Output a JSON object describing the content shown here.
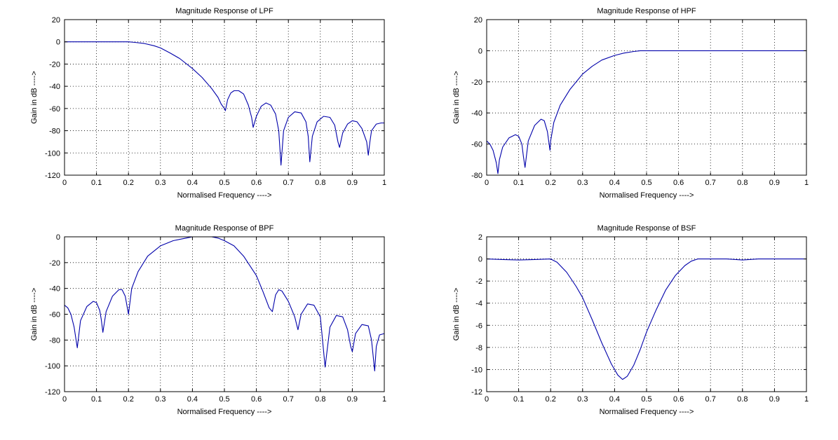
{
  "colors": {
    "series": "#0000aa",
    "axes": "#000000",
    "background": "#ffffff"
  },
  "chart_data": [
    {
      "id": "lpf",
      "type": "line",
      "title": "Magnitude Response of LPF",
      "xlabel": "Normalised Frequency ---->",
      "ylabel": "Gain in dB ---->",
      "xlim": [
        0,
        1
      ],
      "ylim": [
        -120,
        20
      ],
      "xticks": [
        0,
        0.1,
        0.2,
        0.3,
        0.4,
        0.5,
        0.6,
        0.7,
        0.8,
        0.9,
        1
      ],
      "xtick_labels": [
        "0",
        "0.1",
        "0.2",
        "0.3",
        "0.4",
        "0.5",
        "0.6",
        "0.7",
        "0.8",
        "0.9",
        "1"
      ],
      "yticks": [
        -120,
        -100,
        -80,
        -60,
        -40,
        -20,
        0,
        20
      ],
      "ytick_labels": [
        "-120",
        "-100",
        "-80",
        "-60",
        "-40",
        "-20",
        "0",
        "20"
      ],
      "grid": true,
      "series": [
        {
          "x": [
            0,
            0.05,
            0.1,
            0.15,
            0.2,
            0.22,
            0.25,
            0.28,
            0.3,
            0.33,
            0.36,
            0.4,
            0.43,
            0.46,
            0.48,
            0.49,
            0.5,
            0.503,
            0.51,
            0.52,
            0.53,
            0.545,
            0.56,
            0.575,
            0.585,
            0.59,
            0.6,
            0.615,
            0.63,
            0.645,
            0.66,
            0.67,
            0.677,
            0.685,
            0.7,
            0.72,
            0.74,
            0.755,
            0.762,
            0.767,
            0.775,
            0.79,
            0.81,
            0.83,
            0.845,
            0.855,
            0.86,
            0.87,
            0.885,
            0.9,
            0.915,
            0.93,
            0.945,
            0.95,
            0.955,
            0.96,
            0.975,
            0.99,
            1
          ],
          "y": [
            0,
            0,
            0,
            0,
            0,
            -0.5,
            -1.5,
            -3.5,
            -5.5,
            -10,
            -15,
            -24,
            -32,
            -42,
            -50,
            -56,
            -60,
            -62,
            -52,
            -46,
            -44,
            -44,
            -47,
            -57,
            -68,
            -77,
            -67,
            -58,
            -55,
            -57,
            -65,
            -80,
            -111,
            -80,
            -68,
            -63,
            -64,
            -72,
            -85,
            -108,
            -85,
            -72,
            -67,
            -68,
            -75,
            -90,
            -95,
            -82,
            -74,
            -71,
            -72,
            -78,
            -90,
            -102,
            -90,
            -80,
            -74,
            -73,
            -73
          ]
        }
      ]
    },
    {
      "id": "hpf",
      "type": "line",
      "title": "Magnitude Response of HPF",
      "xlabel": "Normalised Frequency ---->",
      "ylabel": "Gain in dB ---->",
      "xlim": [
        0,
        1
      ],
      "ylim": [
        -80,
        20
      ],
      "xticks": [
        0,
        0.1,
        0.2,
        0.3,
        0.4,
        0.5,
        0.6,
        0.7,
        0.8,
        0.9,
        1
      ],
      "xtick_labels": [
        "0",
        "0.1",
        "0.2",
        "0.3",
        "0.4",
        "0.5",
        "0.6",
        "0.7",
        "0.8",
        "0.9",
        "1"
      ],
      "yticks": [
        -80,
        -60,
        -40,
        -20,
        0,
        20
      ],
      "ytick_labels": [
        "-80",
        "-60",
        "-40",
        "-20",
        "0",
        "20"
      ],
      "grid": true,
      "series": [
        {
          "x": [
            0,
            0.01,
            0.02,
            0.03,
            0.035,
            0.04,
            0.05,
            0.07,
            0.09,
            0.1,
            0.11,
            0.115,
            0.12,
            0.13,
            0.15,
            0.17,
            0.18,
            0.19,
            0.198,
            0.2,
            0.21,
            0.23,
            0.26,
            0.3,
            0.33,
            0.36,
            0.4,
            0.43,
            0.46,
            0.48,
            0.5,
            0.6,
            0.7,
            0.8,
            0.9,
            1
          ],
          "y": [
            -58,
            -60,
            -64,
            -72,
            -79,
            -70,
            -62,
            -56,
            -54,
            -55,
            -60,
            -68,
            -75,
            -58,
            -48,
            -44,
            -45,
            -52,
            -64,
            -58,
            -46,
            -35,
            -25,
            -15,
            -10,
            -6,
            -3,
            -1.5,
            -0.5,
            0,
            0,
            0,
            0,
            0,
            0,
            0
          ]
        }
      ]
    },
    {
      "id": "bpf",
      "type": "line",
      "title": "Magnitude Response of BPF",
      "xlabel": "Normalised Frequency ---->",
      "ylabel": "Gain in dB ---->",
      "xlim": [
        0,
        1
      ],
      "ylim": [
        -120,
        0
      ],
      "xticks": [
        0,
        0.1,
        0.2,
        0.3,
        0.4,
        0.5,
        0.6,
        0.7,
        0.8,
        0.9,
        1
      ],
      "xtick_labels": [
        "0",
        "0.1",
        "0.2",
        "0.3",
        "0.4",
        "0.5",
        "0.6",
        "0.7",
        "0.8",
        "0.9",
        "1"
      ],
      "yticks": [
        -120,
        -100,
        -80,
        -60,
        -40,
        -20,
        0
      ],
      "ytick_labels": [
        "-120",
        "-100",
        "-80",
        "-60",
        "-40",
        "-20",
        "0"
      ],
      "grid": true,
      "series": [
        {
          "x": [
            0,
            0.01,
            0.02,
            0.03,
            0.04,
            0.05,
            0.07,
            0.09,
            0.1,
            0.11,
            0.115,
            0.12,
            0.13,
            0.15,
            0.17,
            0.18,
            0.19,
            0.2,
            0.21,
            0.23,
            0.26,
            0.3,
            0.34,
            0.38,
            0.4,
            0.42,
            0.44,
            0.46,
            0.48,
            0.5,
            0.53,
            0.56,
            0.6,
            0.62,
            0.64,
            0.65,
            0.66,
            0.67,
            0.68,
            0.7,
            0.72,
            0.73,
            0.74,
            0.76,
            0.78,
            0.8,
            0.815,
            0.83,
            0.85,
            0.87,
            0.885,
            0.895,
            0.9,
            0.91,
            0.93,
            0.95,
            0.96,
            0.97,
            0.975,
            0.985,
            1
          ],
          "y": [
            -53,
            -55,
            -60,
            -70,
            -86,
            -65,
            -54,
            -50,
            -51,
            -57,
            -64,
            -74,
            -58,
            -46,
            -41,
            -41,
            -46,
            -60,
            -40,
            -27,
            -15,
            -7,
            -3,
            -1,
            0,
            0,
            0,
            0,
            -1,
            -3,
            -7,
            -15,
            -30,
            -42,
            -55,
            -58,
            -45,
            -41,
            -42,
            -50,
            -62,
            -72,
            -60,
            -52,
            -53,
            -62,
            -101,
            -70,
            -61,
            -62,
            -72,
            -85,
            -89,
            -75,
            -68,
            -69,
            -80,
            -104,
            -85,
            -76,
            -75
          ]
        }
      ]
    },
    {
      "id": "bsf",
      "type": "line",
      "title": "Magnitude Response of BSF",
      "xlabel": "Normalised Frequency ---->",
      "ylabel": "Gain in dB ---->",
      "xlim": [
        0,
        1
      ],
      "ylim": [
        -12,
        2
      ],
      "xticks": [
        0,
        0.1,
        0.2,
        0.3,
        0.4,
        0.5,
        0.6,
        0.7,
        0.8,
        0.9,
        1
      ],
      "xtick_labels": [
        "0",
        "0.1",
        "0.2",
        "0.3",
        "0.4",
        "0.5",
        "0.6",
        "0.7",
        "0.8",
        "0.9",
        "1"
      ],
      "yticks": [
        -12,
        -10,
        -8,
        -6,
        -4,
        -2,
        0,
        2
      ],
      "ytick_labels": [
        "-12",
        "-10",
        "-8",
        "-6",
        "-4",
        "-2",
        "0",
        "2"
      ],
      "grid": true,
      "series": [
        {
          "x": [
            0,
            0.05,
            0.1,
            0.15,
            0.2,
            0.22,
            0.25,
            0.28,
            0.3,
            0.33,
            0.36,
            0.39,
            0.41,
            0.425,
            0.44,
            0.46,
            0.48,
            0.5,
            0.53,
            0.56,
            0.59,
            0.62,
            0.64,
            0.66,
            0.7,
            0.75,
            0.8,
            0.85,
            0.9,
            1
          ],
          "y": [
            0,
            -0.05,
            -0.1,
            -0.05,
            0,
            -0.3,
            -1.2,
            -2.5,
            -3.5,
            -5.5,
            -7.6,
            -9.5,
            -10.5,
            -10.9,
            -10.6,
            -9.6,
            -8.2,
            -6.6,
            -4.6,
            -2.8,
            -1.5,
            -0.6,
            -0.2,
            0,
            0,
            0,
            -0.1,
            0,
            0,
            0
          ]
        }
      ]
    }
  ]
}
